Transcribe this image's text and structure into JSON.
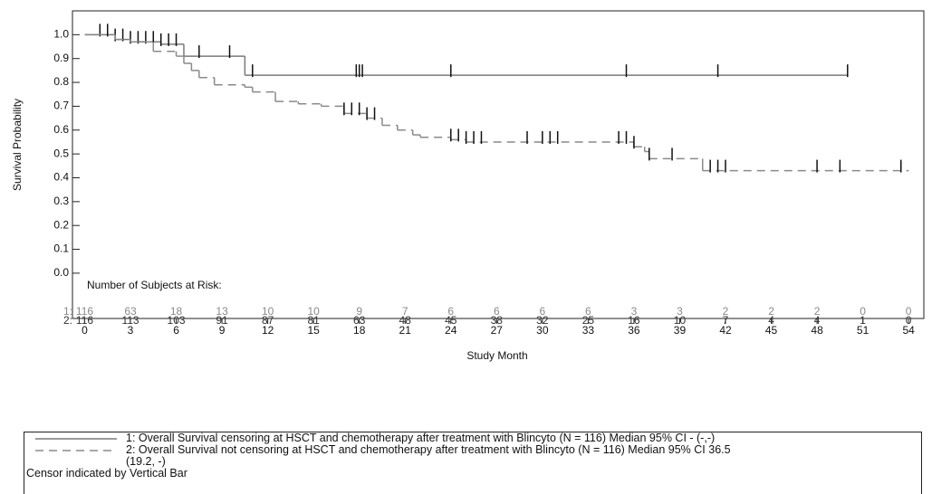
{
  "chart_data": {
    "type": "step",
    "ylabel": "Survival Probability",
    "xlabel": "Study Month",
    "xlim": [
      -0.8,
      55
    ],
    "ylim": [
      -0.19,
      1.1
    ],
    "xticks": [
      0,
      3,
      6,
      9,
      12,
      15,
      18,
      21,
      24,
      27,
      30,
      33,
      36,
      39,
      42,
      45,
      48,
      51,
      54
    ],
    "yticks": [
      {
        "value": 0,
        "label": "0.0"
      },
      0.1,
      0.2,
      0.3,
      0.4,
      0.5,
      0.6,
      0.7,
      0.8,
      0.9,
      {
        "value": 1,
        "label": "1.0"
      }
    ],
    "series": [
      {
        "name": "1: Overall Survival censoring at HSCT and chemotherapy after treatment with Blincyto (N = 116) Median 95% CI - (-,-)",
        "color": "#7a7a7a",
        "dash": "none",
        "x": [
          0,
          2,
          3,
          5,
          6.5,
          10.5,
          50
        ],
        "values": [
          1.0,
          0.98,
          0.97,
          0.96,
          0.91,
          0.83,
          0.83
        ],
        "censor_x": [
          1,
          1.5,
          2,
          2.5,
          3,
          3.5,
          4,
          4.5,
          5,
          5.5,
          6,
          7.5,
          9.5,
          11,
          17.8,
          18,
          18.2,
          24,
          35.5,
          41.5,
          50
        ],
        "censor_y": [
          1.0,
          1.0,
          0.98,
          0.98,
          0.97,
          0.97,
          0.97,
          0.97,
          0.96,
          0.96,
          0.96,
          0.91,
          0.91,
          0.83,
          0.83,
          0.83,
          0.83,
          0.83,
          0.83,
          0.83,
          0.83
        ]
      },
      {
        "name": "2: Overall Survival not censoring at HSCT and chemotherapy after treatment with Blincyto (N = 116) Median 95% CI 36.5 (19.2, -)",
        "color": "#8a8a8a",
        "dash": "9 6",
        "x": [
          0,
          2,
          3,
          4.5,
          6,
          6.5,
          7,
          7.5,
          8.5,
          10.5,
          11,
          12.5,
          14,
          15.5,
          17,
          18.5,
          19.5,
          20.5,
          21.5,
          22,
          24,
          25,
          36,
          36.7,
          37,
          40.5,
          54
        ],
        "values": [
          1.0,
          0.98,
          0.97,
          0.93,
          0.91,
          0.88,
          0.85,
          0.82,
          0.79,
          0.78,
          0.76,
          0.72,
          0.71,
          0.7,
          0.67,
          0.65,
          0.62,
          0.6,
          0.58,
          0.57,
          0.56,
          0.55,
          0.53,
          0.51,
          0.48,
          0.43,
          0.43
        ],
        "censor_x": [
          17,
          17.5,
          18,
          18.5,
          19,
          24,
          24.5,
          25,
          25.5,
          26,
          29,
          30,
          30.5,
          31,
          35,
          35.5,
          36,
          37,
          38.5,
          41,
          41.5,
          42,
          48,
          49.5,
          53.5
        ],
        "censor_y": [
          0.67,
          0.67,
          0.67,
          0.65,
          0.65,
          0.56,
          0.56,
          0.55,
          0.55,
          0.55,
          0.55,
          0.55,
          0.55,
          0.55,
          0.55,
          0.55,
          0.53,
          0.48,
          0.48,
          0.43,
          0.43,
          0.43,
          0.43,
          0.43,
          0.43
        ]
      }
    ],
    "risk_table": {
      "title": "Number of Subjects at Risk:",
      "rows": [
        {
          "label": "1:",
          "color": "#8a8a8a",
          "values": [
            "116",
            "63",
            "18",
            "13",
            "10",
            "10",
            "9",
            "7",
            "6",
            "6",
            "6",
            "6",
            "3",
            "3",
            "2",
            "2",
            "2",
            "0",
            "0"
          ]
        },
        {
          "label": "2:",
          "color": "#333333",
          "values": [
            "116",
            "113",
            "103",
            "91",
            "87",
            "81",
            "63",
            "48",
            "45",
            "38",
            "32",
            "25",
            "16",
            "10",
            "7",
            "4",
            "4",
            "1",
            "0"
          ]
        }
      ]
    },
    "footnote": "Censor indicated by Vertical Bar"
  }
}
